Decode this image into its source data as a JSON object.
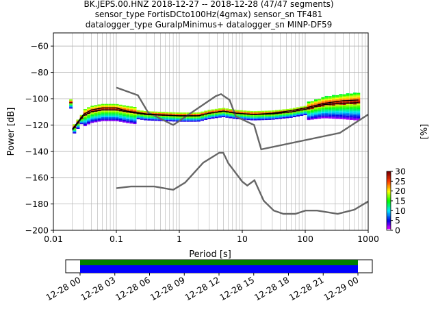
{
  "title_lines": [
    "BK.JEPS.00.HNZ   2018-12-27 -- 2018-12-28  (47/47 segments)",
    "sensor_type FortisDCto100Hz(4gmax) sensor_sn TF481",
    "datalogger_type GuralpMinimus+ datalogger_sn MINP-DF59"
  ],
  "chart_data": {
    "type": "heatmap",
    "xlabel": "Period [s]",
    "ylabel": "Power [dB]",
    "xscale": "log",
    "xlim": [
      0.01,
      1000
    ],
    "ylim": [
      -200,
      -50
    ],
    "xticks": [
      0.01,
      0.1,
      1,
      10,
      100,
      1000
    ],
    "xtick_labels": [
      "0.01",
      "0.1",
      "1",
      "10",
      "100",
      "1000"
    ],
    "yticks": [
      -200,
      -180,
      -160,
      -140,
      -120,
      -100,
      -80,
      -60
    ],
    "ytick_labels": [
      "−200",
      "−180",
      "−160",
      "−140",
      "−120",
      "−100",
      "−80",
      "−60"
    ],
    "grid": true,
    "colorbar": {
      "label": "[%]",
      "range": [
        0,
        30
      ],
      "ticks": [
        0,
        5,
        10,
        15,
        20,
        25,
        30
      ],
      "tick_labels": [
        "0",
        "5",
        "10",
        "15",
        "20",
        "25",
        "30"
      ],
      "colormap": "pqlx"
    },
    "noise_models": {
      "NHNM": [
        [
          0.1,
          -91.5
        ],
        [
          0.22,
          -97.4
        ],
        [
          0.32,
          -110.5
        ],
        [
          0.8,
          -120
        ],
        [
          3.8,
          -98
        ],
        [
          4.6,
          -96.5
        ],
        [
          6.3,
          -101
        ],
        [
          7.9,
          -113.5
        ],
        [
          15.4,
          -120
        ],
        [
          20,
          -138.5
        ],
        [
          354.8,
          -126
        ],
        [
          1000,
          -112
        ]
      ],
      "NLNM": [
        [
          0.1,
          -168
        ],
        [
          0.17,
          -166.7
        ],
        [
          0.4,
          -166.7
        ],
        [
          0.8,
          -169.2
        ],
        [
          1.24,
          -163.7
        ],
        [
          2.4,
          -148.6
        ],
        [
          4.3,
          -141.1
        ],
        [
          5.0,
          -141.1
        ],
        [
          6.0,
          -149
        ],
        [
          10,
          -163
        ],
        [
          12,
          -166
        ],
        [
          15.6,
          -162
        ],
        [
          21.9,
          -177.5
        ],
        [
          31.6,
          -185
        ],
        [
          45,
          -187.5
        ],
        [
          70,
          -187.5
        ],
        [
          101,
          -185
        ],
        [
          154,
          -185
        ],
        [
          328,
          -187.5
        ],
        [
          600,
          -184.4
        ],
        [
          1000,
          -178
        ]
      ]
    },
    "psd_mode": [
      [
        0.02,
        -124
      ],
      [
        0.025,
        -118
      ],
      [
        0.03,
        -113
      ],
      [
        0.04,
        -110
      ],
      [
        0.06,
        -108.5
      ],
      [
        0.1,
        -108.5
      ],
      [
        0.15,
        -110
      ],
      [
        0.3,
        -112
      ],
      [
        1,
        -113
      ],
      [
        2,
        -113
      ],
      [
        3,
        -111
      ],
      [
        5,
        -109.5
      ],
      [
        8,
        -111
      ],
      [
        15,
        -112
      ],
      [
        30,
        -111.5
      ],
      [
        60,
        -110
      ],
      [
        100,
        -108
      ],
      [
        200,
        -104.5
      ],
      [
        400,
        -103.5
      ],
      [
        700,
        -103
      ]
    ],
    "psd_mean": [
      [
        0.02,
        -123
      ],
      [
        0.025,
        -117
      ],
      [
        0.03,
        -112
      ],
      [
        0.04,
        -108.5
      ],
      [
        0.06,
        -107
      ],
      [
        0.1,
        -107
      ],
      [
        0.15,
        -109.5
      ],
      [
        0.3,
        -111.5
      ],
      [
        1,
        -113
      ],
      [
        2,
        -113
      ],
      [
        3,
        -111
      ],
      [
        5,
        -109.5
      ],
      [
        8,
        -111
      ],
      [
        15,
        -112
      ],
      [
        30,
        -111
      ],
      [
        60,
        -109
      ],
      [
        100,
        -107
      ],
      [
        200,
        -103.5
      ],
      [
        400,
        -101.5
      ],
      [
        700,
        -101
      ]
    ],
    "time_axis": {
      "tick_labels": [
        "12-28 00",
        "12-28 03",
        "12-28 06",
        "12-28 09",
        "12-28 12",
        "12-28 15",
        "12-28 18",
        "12-28 21",
        "12-29 00"
      ],
      "data_coverage_color": "#0000ff",
      "gap_coverage_color": "#008000"
    }
  }
}
